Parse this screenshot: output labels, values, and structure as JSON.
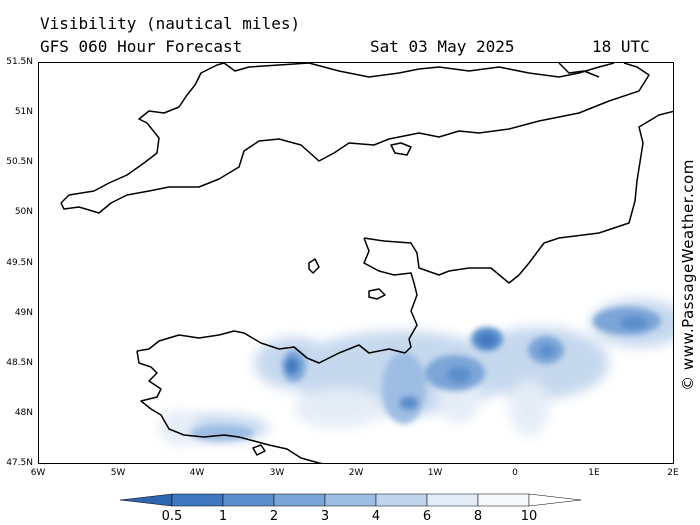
{
  "header": {
    "title": "Visibility (nautical miles)",
    "subtitle": "GFS 060 Hour Forecast",
    "date": "Sat 03 May 2025",
    "time": "18 UTC"
  },
  "axes": {
    "lat_labels": [
      "51.5N",
      "51N",
      "50.5N",
      "50N",
      "49.5N",
      "49N",
      "48.5N",
      "48N",
      "47.5N"
    ],
    "lon_labels": [
      "6W",
      "5W",
      "4W",
      "3W",
      "2W",
      "1W",
      "0",
      "1E",
      "2E"
    ],
    "lat_range": [
      47.5,
      51.5
    ],
    "lon_range": [
      -6,
      2
    ]
  },
  "legend": {
    "labels": [
      "0.5",
      "1",
      "2",
      "3",
      "4",
      "6",
      "8",
      "10"
    ],
    "colors": [
      "#2f66b0",
      "#3f78c0",
      "#5b8ecc",
      "#7ba5d8",
      "#9dbde3",
      "#c0d4ec",
      "#e2ebf6",
      "#f6f9fc",
      "#ffffff"
    ]
  },
  "watermark": "© www.PassageWeather.com"
}
